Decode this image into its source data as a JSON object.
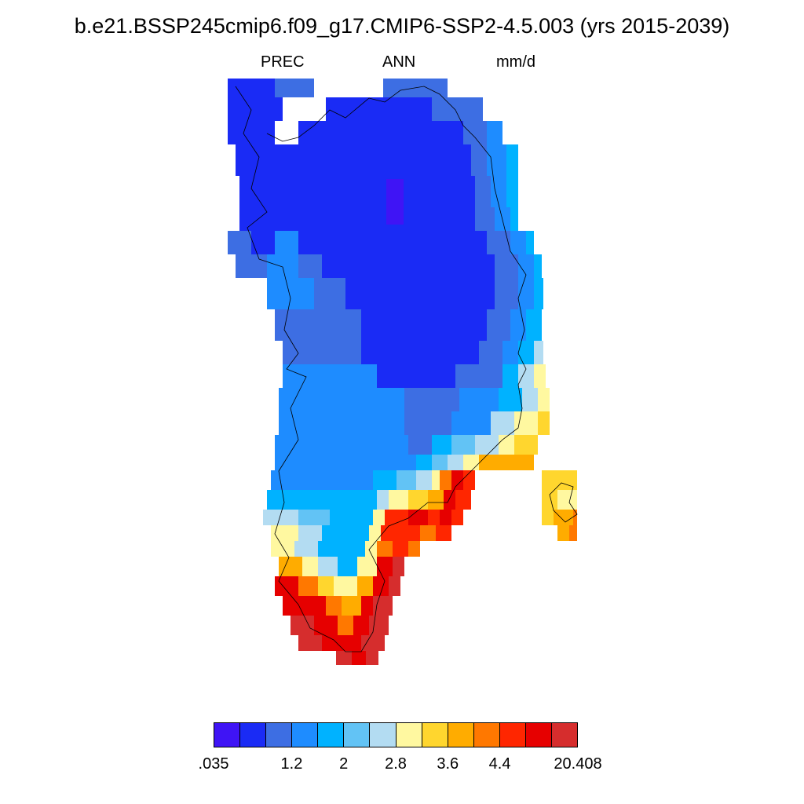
{
  "title": "b.e21.BSSP245cmip6.f09_g17.CMIP6-SSP2-4.5.003 (yrs 2015-2039)",
  "subtitle": {
    "variable": "PREC",
    "season": "ANN",
    "units": "mm/d"
  },
  "colorbar": {
    "colors": [
      "#3f14f5",
      "#1a2bf5",
      "#3d6ee3",
      "#1e8cff",
      "#00b2ff",
      "#62c3f5",
      "#b3dcf2",
      "#fff8a0",
      "#ffd62e",
      "#ffac00",
      "#ff7800",
      "#ff2600",
      "#e60000",
      "#d62d2d"
    ],
    "tick_labels": [
      ".035",
      "1.2",
      "2",
      "2.8",
      "3.6",
      "4.4",
      "20.408"
    ]
  },
  "map": {
    "region": "Greenland",
    "field": "annual mean precipitation"
  }
}
